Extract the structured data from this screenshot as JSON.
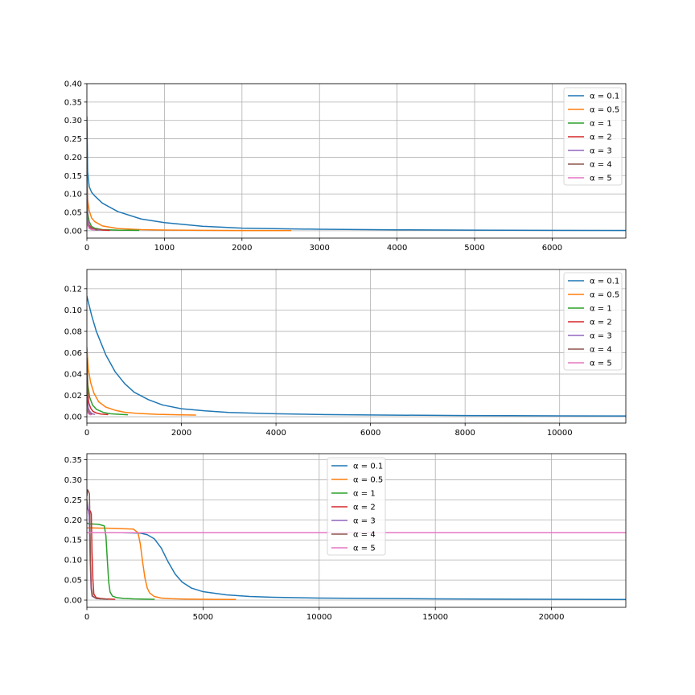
{
  "chart_data": [
    {
      "type": "line",
      "grid": true,
      "legend": "upper right",
      "xlim": [
        0,
        6950
      ],
      "ylim": [
        -0.02,
        0.4
      ],
      "xticks": [
        "0",
        "1000",
        "2000",
        "3000",
        "4000",
        "5000",
        "6000"
      ],
      "xtick_values": [
        0,
        1000,
        2000,
        3000,
        4000,
        5000,
        6000
      ],
      "yticks": [
        "0.00",
        "0.05",
        "0.10",
        "0.15",
        "0.20",
        "0.25",
        "0.30",
        "0.35",
        "0.40"
      ],
      "ytick_values": [
        0,
        0.05,
        0.1,
        0.15,
        0.2,
        0.25,
        0.3,
        0.35,
        0.4
      ],
      "series": [
        {
          "name": "α = 0.1",
          "color": "#1f77b4",
          "x": [
            0,
            10,
            30,
            60,
            100,
            200,
            400,
            700,
            1000,
            1500,
            2000,
            3000,
            4000,
            5000,
            6000,
            6950
          ],
          "y": [
            0.31,
            0.16,
            0.12,
            0.105,
            0.095,
            0.075,
            0.052,
            0.032,
            0.022,
            0.012,
            0.007,
            0.004,
            0.0025,
            0.0015,
            0.001,
            0.0008
          ]
        },
        {
          "name": "α = 0.5",
          "color": "#ff7f0e",
          "x": [
            0,
            10,
            30,
            60,
            100,
            200,
            400,
            700,
            1000,
            1500,
            2000,
            2630
          ],
          "y": [
            0.15,
            0.085,
            0.055,
            0.035,
            0.025,
            0.013,
            0.006,
            0.003,
            0.002,
            0.001,
            0.0006,
            0.0004
          ]
        },
        {
          "name": "α = 1",
          "color": "#2ca02c",
          "x": [
            0,
            10,
            30,
            60,
            100,
            200,
            400,
            670
          ],
          "y": [
            0.16,
            0.05,
            0.025,
            0.012,
            0.007,
            0.003,
            0.0015,
            0.001
          ]
        },
        {
          "name": "α = 2",
          "color": "#d62728",
          "x": [
            0,
            10,
            30,
            60,
            100,
            200,
            290
          ],
          "y": [
            0.16,
            0.03,
            0.015,
            0.008,
            0.004,
            0.002,
            0.001
          ]
        },
        {
          "name": "α = 3",
          "color": "#9467bd",
          "x": [
            0,
            10,
            30,
            60,
            100,
            160
          ],
          "y": [
            0.16,
            0.03,
            0.012,
            0.006,
            0.003,
            0.002
          ]
        },
        {
          "name": "α = 4",
          "color": "#8c564b",
          "x": [
            0,
            10,
            30,
            60,
            100,
            130
          ],
          "y": [
            0.05,
            0.02,
            0.01,
            0.005,
            0.003,
            0.002
          ]
        },
        {
          "name": "α = 5",
          "color": "#e377c2",
          "x": [
            0,
            10,
            30,
            60,
            100
          ],
          "y": [
            0.045,
            0.015,
            0.006,
            0.003,
            0.002
          ]
        }
      ]
    },
    {
      "type": "line",
      "grid": true,
      "legend": "upper right",
      "xlim": [
        0,
        11400
      ],
      "ylim": [
        -0.006,
        0.138
      ],
      "xticks": [
        "0",
        "2000",
        "4000",
        "6000",
        "8000",
        "10000"
      ],
      "xtick_values": [
        0,
        2000,
        4000,
        6000,
        8000,
        10000
      ],
      "yticks": [
        "0.00",
        "0.02",
        "0.04",
        "0.06",
        "0.08",
        "0.10",
        "0.12"
      ],
      "ytick_values": [
        0,
        0.02,
        0.04,
        0.06,
        0.08,
        0.1,
        0.12
      ],
      "series": [
        {
          "name": "α = 0.1",
          "color": "#1f77b4",
          "x": [
            0,
            100,
            200,
            400,
            600,
            800,
            1000,
            1300,
            1600,
            2000,
            2500,
            3000,
            4000,
            5000,
            6000,
            8000,
            10000,
            11400
          ],
          "y": [
            0.113,
            0.095,
            0.08,
            0.058,
            0.042,
            0.031,
            0.023,
            0.016,
            0.011,
            0.0075,
            0.0055,
            0.004,
            0.0028,
            0.002,
            0.0016,
            0.0011,
            0.0008,
            0.0007
          ]
        },
        {
          "name": "α = 0.5",
          "color": "#ff7f0e",
          "x": [
            0,
            30,
            80,
            150,
            250,
            400,
            600,
            800,
            1100,
            1500,
            2000,
            2300
          ],
          "y": [
            0.065,
            0.045,
            0.032,
            0.022,
            0.014,
            0.009,
            0.006,
            0.0042,
            0.003,
            0.0022,
            0.0017,
            0.0015
          ]
        },
        {
          "name": "α = 1",
          "color": "#2ca02c",
          "x": [
            0,
            20,
            60,
            120,
            200,
            350,
            500,
            700,
            860
          ],
          "y": [
            0.052,
            0.03,
            0.018,
            0.011,
            0.007,
            0.004,
            0.0028,
            0.0022,
            0.0018
          ]
        },
        {
          "name": "α = 2",
          "color": "#d62728",
          "x": [
            0,
            15,
            40,
            80,
            130,
            200,
            300,
            440
          ],
          "y": [
            0.055,
            0.025,
            0.013,
            0.008,
            0.005,
            0.0035,
            0.0025,
            0.002
          ]
        },
        {
          "name": "α = 3",
          "color": "#9467bd",
          "x": [
            0,
            10,
            30,
            60,
            100,
            160
          ],
          "y": [
            0.03,
            0.015,
            0.008,
            0.005,
            0.003,
            0.0022
          ]
        },
        {
          "name": "α = 4",
          "color": "#8c564b",
          "x": [
            0,
            10,
            30,
            60,
            100
          ],
          "y": [
            0.015,
            0.008,
            0.005,
            0.003,
            0.0022
          ]
        },
        {
          "name": "α = 5",
          "color": "#e377c2",
          "x": [
            0,
            10,
            30,
            60,
            80
          ],
          "y": [
            0.01,
            0.005,
            0.003,
            0.002,
            0.0018
          ]
        }
      ]
    },
    {
      "type": "line",
      "grid": true,
      "legend": "upper center",
      "xlim": [
        0,
        23200
      ],
      "ylim": [
        -0.018,
        0.365
      ],
      "xticks": [
        "0",
        "5000",
        "10000",
        "15000",
        "20000"
      ],
      "xtick_values": [
        0,
        5000,
        10000,
        15000,
        20000
      ],
      "yticks": [
        "0.00",
        "0.05",
        "0.10",
        "0.15",
        "0.20",
        "0.25",
        "0.30",
        "0.35"
      ],
      "ytick_values": [
        0,
        0.05,
        0.1,
        0.15,
        0.2,
        0.25,
        0.3,
        0.35
      ],
      "series": [
        {
          "name": "α = 0.1",
          "color": "#1f77b4",
          "x": [
            0,
            500,
            1500,
            2300,
            2600,
            2900,
            3200,
            3500,
            3800,
            4100,
            4500,
            5000,
            6000,
            7000,
            8000,
            10000,
            15000,
            20000,
            23200
          ],
          "y": [
            0.168,
            0.168,
            0.168,
            0.167,
            0.163,
            0.153,
            0.13,
            0.095,
            0.065,
            0.045,
            0.03,
            0.021,
            0.013,
            0.009,
            0.007,
            0.005,
            0.003,
            0.002,
            0.0016
          ]
        },
        {
          "name": "α = 0.5",
          "color": "#ff7f0e",
          "x": [
            0,
            200,
            1000,
            2000,
            2200,
            2300,
            2400,
            2500,
            2600,
            2700,
            2900,
            3200,
            3600,
            4200,
            5000,
            6400
          ],
          "y": [
            0.18,
            0.18,
            0.179,
            0.177,
            0.168,
            0.14,
            0.095,
            0.055,
            0.03,
            0.018,
            0.009,
            0.005,
            0.0035,
            0.0025,
            0.002,
            0.0015
          ]
        },
        {
          "name": "α = 1",
          "color": "#2ca02c",
          "x": [
            0,
            100,
            500,
            750,
            820,
            880,
            940,
            1000,
            1100,
            1300,
            1600,
            2000,
            2900
          ],
          "y": [
            0.192,
            0.19,
            0.189,
            0.185,
            0.16,
            0.1,
            0.045,
            0.02,
            0.01,
            0.006,
            0.004,
            0.003,
            0.002
          ]
        },
        {
          "name": "α = 2",
          "color": "#d62728",
          "x": [
            0,
            50,
            150,
            190,
            220,
            260,
            300,
            400,
            600,
            800,
            1200
          ],
          "y": [
            0.24,
            0.225,
            0.222,
            0.215,
            0.12,
            0.05,
            0.015,
            0.006,
            0.004,
            0.003,
            0.002
          ]
        },
        {
          "name": "α = 3",
          "color": "#9467bd",
          "x": [
            0,
            50,
            100,
            140,
            180,
            220,
            400,
            600
          ],
          "y": [
            0.25,
            0.228,
            0.21,
            0.1,
            0.03,
            0.01,
            0.004,
            0.003
          ]
        },
        {
          "name": "α = 4",
          "color": "#8c564b",
          "x": [
            0,
            30,
            80,
            110,
            130,
            160,
            190,
            250,
            400,
            600,
            900
          ],
          "y": [
            0.26,
            0.275,
            0.27,
            0.265,
            0.2,
            0.09,
            0.03,
            0.01,
            0.004,
            0.003,
            0.002
          ]
        },
        {
          "name": "α = 5",
          "color": "#e377c2",
          "x": [
            0,
            23200
          ],
          "y": [
            0.168,
            0.168
          ]
        }
      ]
    }
  ]
}
